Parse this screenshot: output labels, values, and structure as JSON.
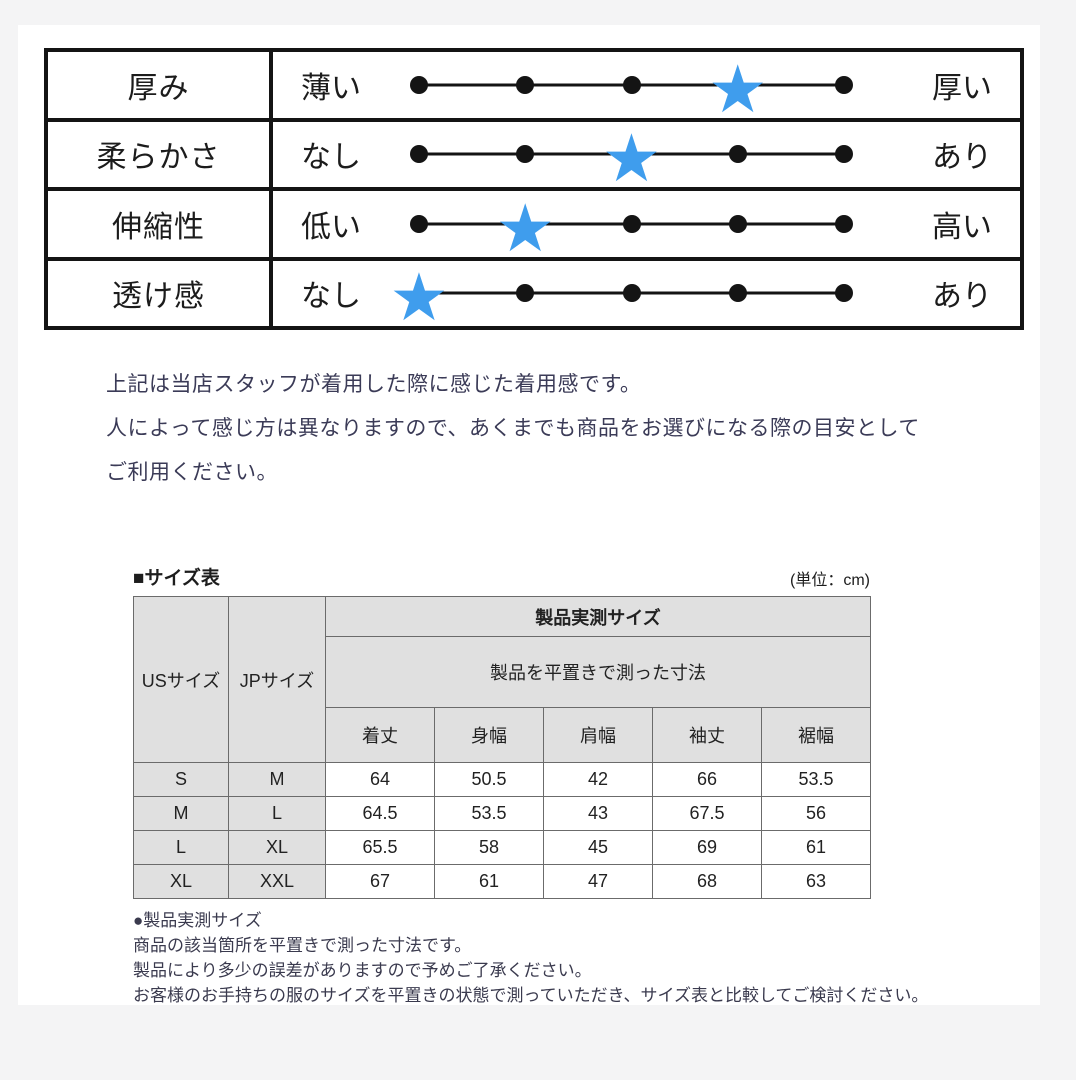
{
  "colors": {
    "star_blue": "#3f9ded",
    "dot_black": "#141414",
    "header_gray": "#e0e0e0",
    "panel_white": "#ffffff",
    "page_bg": "#f4f4f5"
  },
  "rating_table": {
    "levels": 5,
    "rows": [
      {
        "label": "厚み",
        "min": "薄い",
        "max": "厚い",
        "value": 4
      },
      {
        "label": "柔らかさ",
        "min": "なし",
        "max": "あり",
        "value": 3
      },
      {
        "label": "伸縮性",
        "min": "低い",
        "max": "高い",
        "value": 2
      },
      {
        "label": "透け感",
        "min": "なし",
        "max": "あり",
        "value": 1
      }
    ]
  },
  "description": {
    "lines": [
      "上記は当店スタッフが着用した際に感じた着用感です。",
      "人によって感じ方は異なりますので、あくまでも商品をお選びになる際の目安として",
      "ご利用ください。"
    ]
  },
  "size_section": {
    "heading": "■サイズ表",
    "unit": "(単位：cm)",
    "group_header": "製品実測サイズ",
    "group_subheader": "製品を平置きで測った寸法",
    "col_headers": [
      "USサイズ",
      "JPサイズ"
    ],
    "measure_headers": [
      "着丈",
      "身幅",
      "肩幅",
      "袖丈",
      "裾幅"
    ],
    "rows": [
      {
        "us": "S",
        "jp": "M",
        "values": [
          "64",
          "50.5",
          "42",
          "66",
          "53.5"
        ]
      },
      {
        "us": "M",
        "jp": "L",
        "values": [
          "64.5",
          "53.5",
          "43",
          "67.5",
          "56"
        ]
      },
      {
        "us": "L",
        "jp": "XL",
        "values": [
          "65.5",
          "58",
          "45",
          "69",
          "61"
        ]
      },
      {
        "us": "XL",
        "jp": "XXL",
        "values": [
          "67",
          "61",
          "47",
          "68",
          "63"
        ]
      }
    ]
  },
  "notes": {
    "heading": "●製品実測サイズ",
    "lines": [
      "商品の該当箇所を平置きで測った寸法です。",
      "製品により多少の誤差がありますので予めご了承ください。",
      "お客様のお手持ちの服のサイズを平置きの状態で測っていただき、サイズ表と比較してご検討ください。"
    ]
  }
}
